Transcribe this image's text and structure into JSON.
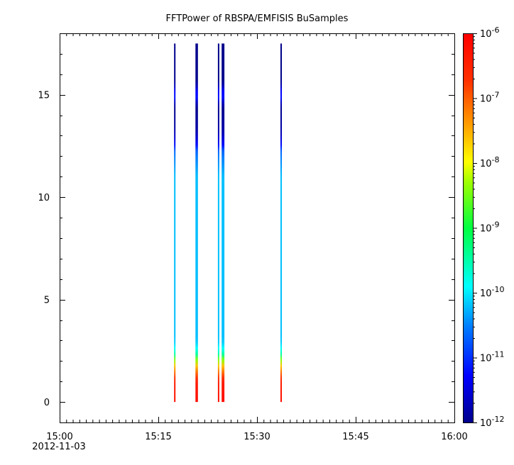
{
  "chart_data": {
    "type": "heatmap",
    "title": "FFTPower of RBSPA/EMFISIS  BuSamples",
    "xlabel": "",
    "ylabel": "",
    "x_range": [
      "15:00",
      "16:00"
    ],
    "x_date_label": "2012-11-03",
    "x_ticks": [
      "15:00",
      "15:15",
      "15:30",
      "15:45",
      "16:00"
    ],
    "ylim": [
      -1,
      18
    ],
    "y_ticks": [
      0,
      5,
      10,
      15
    ],
    "colorbar": {
      "scale": "log",
      "range": [
        "1e-12",
        "1e-6"
      ],
      "ticks": [
        {
          "base": "10",
          "exp": "-6"
        },
        {
          "base": "10",
          "exp": "-7"
        },
        {
          "base": "10",
          "exp": "-8"
        },
        {
          "base": "10",
          "exp": "-9"
        },
        {
          "base": "10",
          "exp": "-10"
        },
        {
          "base": "10",
          "exp": "-11"
        },
        {
          "base": "10",
          "exp": "-12"
        }
      ],
      "colormap": "rainbow (blue to red)"
    },
    "bursts": [
      {
        "time": "15:17:30",
        "width_min": 0.18,
        "top": 17.5
      },
      {
        "time": "15:20:50",
        "width_min": 0.38,
        "top": 17.5
      },
      {
        "time": "15:24:10",
        "width_min": 0.2,
        "top": 17.5
      },
      {
        "time": "15:24:50",
        "width_min": 0.42,
        "top": 17.5
      },
      {
        "time": "15:33:40",
        "width_min": 0.2,
        "top": 17.5
      }
    ],
    "spectrum_profile": [
      {
        "y": 17.5,
        "log_power": -12.0
      },
      {
        "y": 15.6,
        "log_power": -12.0
      },
      {
        "y": 15.0,
        "log_power": -11.0
      },
      {
        "y": 14.4,
        "log_power": -12.0
      },
      {
        "y": 13.2,
        "log_power": -11.8
      },
      {
        "y": 12.6,
        "log_power": -11.3
      },
      {
        "y": 12.2,
        "log_power": -10.6
      },
      {
        "y": 11.0,
        "log_power": -10.2
      },
      {
        "y": 6.0,
        "log_power": -10.2
      },
      {
        "y": 3.0,
        "log_power": -10.2
      },
      {
        "y": 2.4,
        "log_power": -9.7
      },
      {
        "y": 2.0,
        "log_power": -8.2
      },
      {
        "y": 1.7,
        "log_power": -7.5
      },
      {
        "y": 1.0,
        "log_power": -6.4
      },
      {
        "y": 0.0,
        "log_power": -6.2
      }
    ]
  }
}
